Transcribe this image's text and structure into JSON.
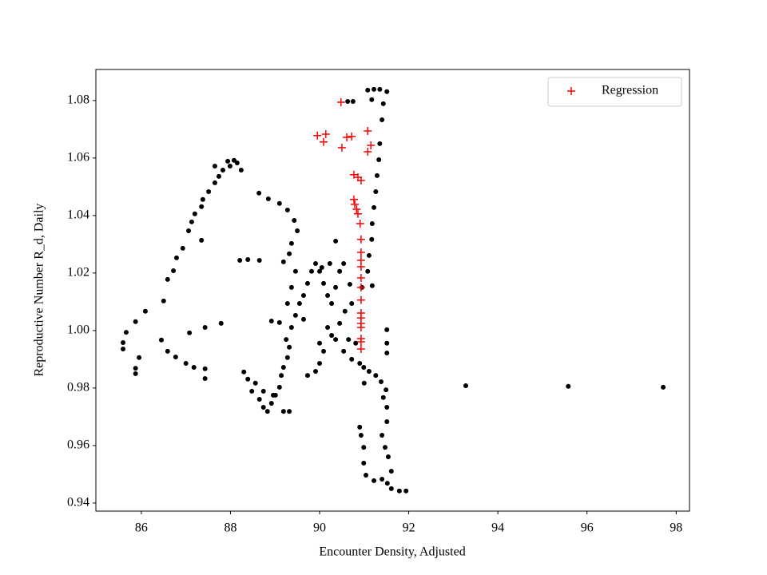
{
  "chart_data": {
    "type": "scatter",
    "xlabel": "Encounter Density, Adjusted",
    "ylabel": "Reproductive Number R_d, Daily",
    "xlim": [
      84.98,
      98.3
    ],
    "ylim": [
      0.9372,
      1.0908
    ],
    "xticks": [
      86,
      88,
      90,
      92,
      94,
      96,
      98
    ],
    "yticks": [
      0.94,
      0.96,
      0.98,
      {
        "value": 1,
        "label": "1.00"
      },
      1.02,
      1.04,
      1.06,
      1.08
    ],
    "legend": "upper right",
    "series": [
      {
        "color": "#000000",
        "marker": "o",
        "x": [
          85.59,
          85.59,
          85.66,
          85.87,
          85.87,
          85.87,
          85.95,
          86.09,
          86.5,
          86.59,
          86.72,
          86.79,
          86.93,
          87.06,
          87.13,
          87.2,
          87.35,
          87.38,
          87.51,
          87.65,
          87.74,
          87.83,
          87.94,
          88.08,
          88.15,
          88.24,
          87.99,
          87.65,
          87.35,
          87.79,
          87.08,
          87.43,
          87.43,
          87.43,
          87.18,
          87.0,
          86.77,
          86.59,
          86.45,
          93.28,
          95.58,
          97.71,
          88.21,
          88.39,
          88.65,
          88.64,
          88.85,
          89.1,
          89.28,
          89.43,
          89.5,
          89.37,
          89.32,
          89.19,
          89.1,
          88.3,
          88.39,
          88.48,
          88.65,
          88.74,
          88.83,
          88.92,
          89.01,
          89.1,
          89.14,
          89.19,
          89.28,
          89.32,
          89.25,
          89.37,
          89.46,
          89.55,
          89.64,
          89.73,
          89.82,
          89.91,
          90.0,
          90.09,
          90.18,
          90.27,
          90.36,
          90.45,
          90.54,
          90.36,
          90.68,
          90.72,
          90.57,
          90.45,
          90.27,
          90.09,
          90.0,
          89.91,
          89.73,
          90.0,
          90.18,
          90.36,
          90.54,
          90.72,
          90.9,
          90.99,
          91.11,
          91.26,
          91.38,
          91.49,
          91.43,
          91.51,
          91.51,
          91.4,
          91.47,
          91.54,
          91.61,
          91.52,
          91.61,
          91.79,
          91.94,
          91.4,
          91.22,
          91.04,
          90.99,
          90.99,
          90.9,
          90.93,
          91.51,
          91.51,
          91.51,
          91.0,
          90.95,
          91.18,
          91.08,
          91.11,
          91.17,
          91.18,
          91.22,
          91.26,
          91.29,
          91.33,
          91.35,
          91.4,
          91.43,
          91.51,
          91.35,
          91.22,
          91.08,
          91.17,
          90.63,
          90.75,
          89.37,
          89.46,
          89.64,
          89.28,
          88.92,
          88.96,
          89.19,
          89.32,
          88.74,
          88.56,
          90.23,
          90.05,
          90.81,
          90.65
        ],
        "y": [
          0.9958,
          0.9936,
          0.9994,
          1.0031,
          0.9869,
          0.985,
          0.9906,
          1.0067,
          1.0103,
          1.0178,
          1.0208,
          1.0253,
          1.0286,
          1.0347,
          1.0378,
          1.0406,
          1.0431,
          1.0456,
          1.0483,
          1.0514,
          1.0536,
          1.0558,
          1.0589,
          1.0592,
          1.0583,
          1.0558,
          1.0572,
          1.0572,
          1.0314,
          1.0025,
          0.9992,
          1.0011,
          0.9833,
          0.9867,
          0.9872,
          0.9886,
          0.9908,
          0.9928,
          0.9967,
          0.9808,
          0.9806,
          0.9803,
          1.0244,
          1.0247,
          1.0244,
          1.0478,
          1.0458,
          1.0442,
          1.0419,
          1.0383,
          1.0347,
          1.0303,
          1.0267,
          1.0239,
          1.0028,
          0.9856,
          0.9831,
          0.9789,
          0.9761,
          0.9733,
          0.9719,
          0.9747,
          0.9775,
          0.9803,
          0.9844,
          0.9872,
          0.9906,
          0.9942,
          0.9969,
          1.0011,
          1.0053,
          1.0094,
          1.0122,
          1.0164,
          1.0206,
          1.0233,
          1.0206,
          1.0164,
          1.0122,
          1.0094,
          1.015,
          1.0206,
          1.0233,
          1.0311,
          1.0161,
          1.0094,
          1.0067,
          1.0025,
          0.9983,
          0.9928,
          0.9886,
          0.9858,
          0.9844,
          0.9956,
          1.0011,
          0.9969,
          0.9928,
          0.99,
          0.9886,
          0.9872,
          0.9858,
          0.9844,
          0.9822,
          0.9794,
          0.9767,
          0.9733,
          0.9683,
          0.9636,
          0.9594,
          0.9561,
          0.9511,
          0.9469,
          0.945,
          0.9442,
          0.9442,
          0.9483,
          0.9478,
          0.9497,
          0.9539,
          0.9594,
          0.9664,
          0.9636,
          0.9922,
          1.0003,
          0.9956,
          0.9817,
          1.015,
          1.0156,
          1.0206,
          1.0261,
          1.0317,
          1.0372,
          1.0428,
          1.0483,
          1.0539,
          1.0594,
          1.065,
          1.0733,
          1.0789,
          1.0831,
          1.0839,
          1.0839,
          1.0836,
          1.0803,
          1.0797,
          1.0797,
          1.015,
          1.0206,
          1.0039,
          1.0094,
          1.0033,
          0.9775,
          0.9719,
          0.9719,
          0.9789,
          0.9817,
          1.0233,
          1.0219,
          0.9956,
          0.9969
        ]
      },
      {
        "name": "Regression",
        "color": "#ff0000",
        "marker": "+",
        "x": [
          90.48,
          89.95,
          90.14,
          90.09,
          90.5,
          90.61,
          90.72,
          91.08,
          91.08,
          91.15,
          90.77,
          90.86,
          90.93,
          90.77,
          90.79,
          90.83,
          90.86,
          90.91,
          90.93,
          90.93,
          90.93,
          90.93,
          90.93,
          90.93,
          90.93,
          90.93,
          90.93,
          90.93,
          90.93,
          90.93,
          90.93,
          90.93
        ],
        "y": [
          1.0794,
          1.0678,
          1.0683,
          1.0656,
          1.0636,
          1.0672,
          1.0675,
          1.0694,
          1.0622,
          1.0644,
          1.0542,
          1.0533,
          1.0522,
          1.0456,
          1.0439,
          1.0422,
          1.0406,
          1.0372,
          1.0317,
          1.0272,
          1.0244,
          1.0222,
          1.0183,
          1.015,
          1.0106,
          1.0061,
          1.0044,
          1.0025,
          1.0011,
          0.9972,
          0.9961,
          0.9936
        ]
      }
    ]
  }
}
